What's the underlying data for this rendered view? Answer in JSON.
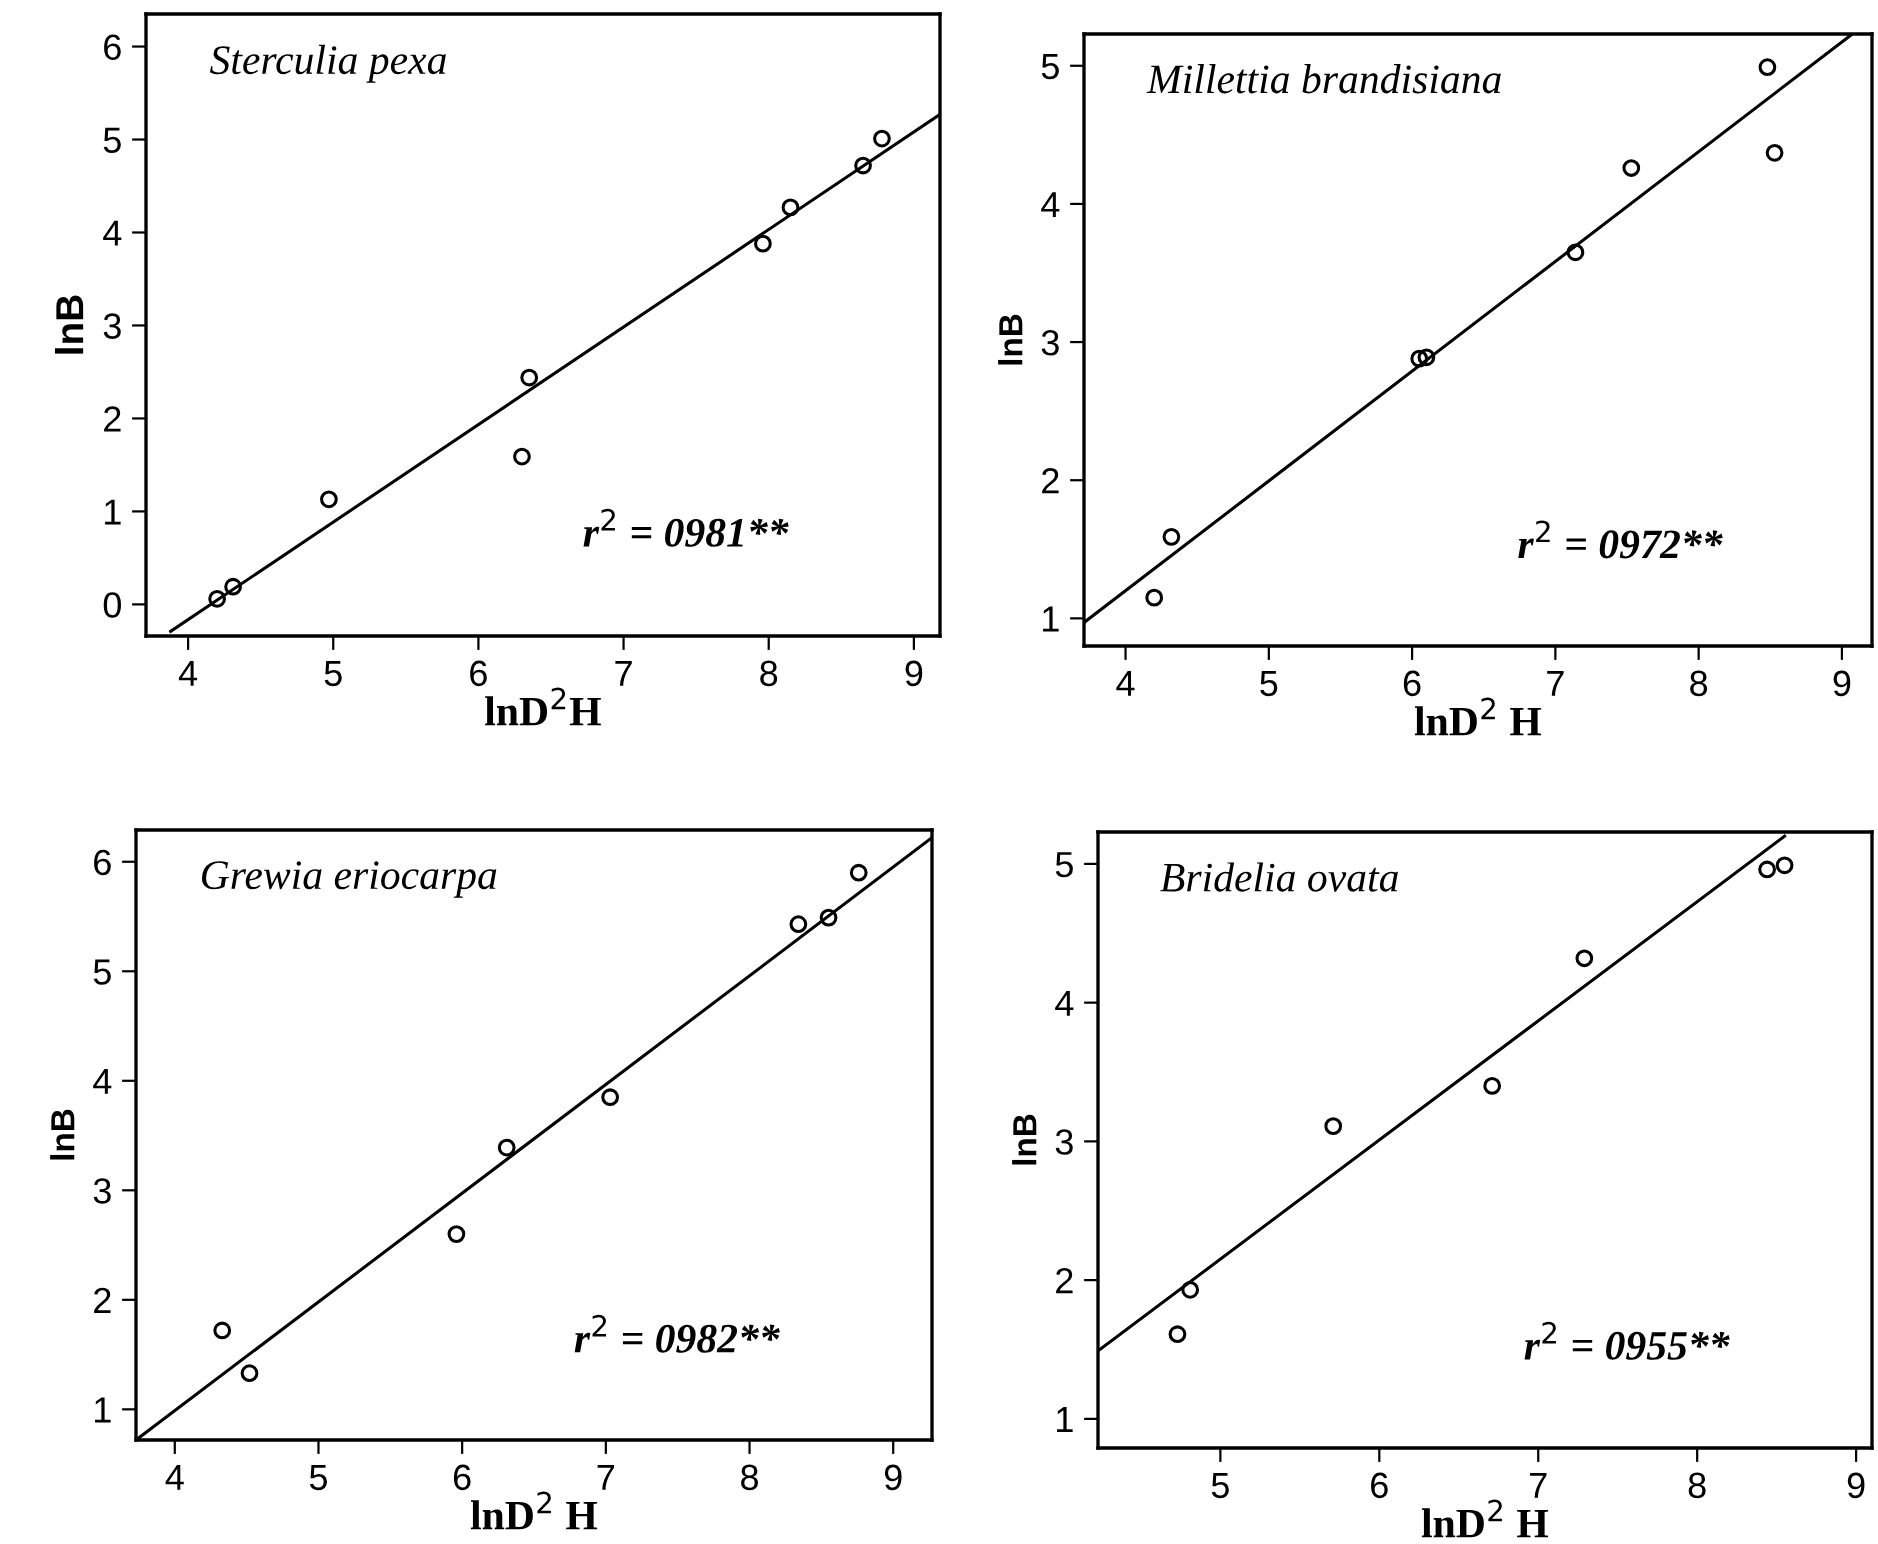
{
  "chart_data": [
    {
      "type": "scatter",
      "title": "Sterculia pexa",
      "xlabel": "lnD$^{2}$H",
      "ylabel": "lnB",
      "xlim": [
        3.71,
        9.18
      ],
      "ylim": [
        -0.34,
        6.35
      ],
      "xticks": [
        4,
        5,
        6,
        7,
        8,
        9
      ],
      "yticks": [
        0,
        1,
        2,
        3,
        4,
        5,
        6
      ],
      "grid": false,
      "annotations": [
        "r$^{2}$ = 0981**"
      ],
      "series": [
        {
          "marker": "circle",
          "color": "#000000",
          "x": [
            4.2,
            4.31,
            4.97,
            6.3,
            6.35,
            7.96,
            8.15,
            8.65,
            8.78
          ],
          "values": [
            0.06,
            0.19,
            1.13,
            1.59,
            2.44,
            3.88,
            4.27,
            4.72,
            5.01
          ]
        },
        {
          "type": "line",
          "color": "#000000",
          "x": [
            3.88,
            9.18
          ],
          "values": [
            -0.29,
            5.27
          ]
        }
      ]
    },
    {
      "type": "scatter",
      "title": "Millettia brandisiana",
      "xlabel": "lnD$^{2}$ H",
      "ylabel": "lnB",
      "xlim": [
        3.71,
        9.21
      ],
      "ylim": [
        0.8,
        5.23
      ],
      "xticks": [
        4,
        5,
        6,
        7,
        8,
        9
      ],
      "yticks": [
        1,
        2,
        3,
        4,
        5
      ],
      "grid": false,
      "annotations": [
        "r$^{2}$ = 0972**"
      ],
      "series": [
        {
          "marker": "circle",
          "color": "#000000",
          "x": [
            4.2,
            4.32,
            6.05,
            6.1,
            7.14,
            7.53,
            8.48,
            8.53
          ],
          "values": [
            1.15,
            1.59,
            2.88,
            2.89,
            3.65,
            4.26,
            4.99,
            4.37
          ]
        },
        {
          "type": "line",
          "color": "#000000",
          "x": [
            3.71,
            9.06
          ],
          "values": [
            0.97,
            5.22
          ]
        }
      ]
    },
    {
      "type": "scatter",
      "title": "Grewia eriocarpa",
      "xlabel": "lnD$^{2}$ H",
      "ylabel": "lnB",
      "xlim": [
        3.73,
        9.27
      ],
      "ylim": [
        0.72,
        6.29
      ],
      "xticks": [
        4,
        5,
        6,
        7,
        8,
        9
      ],
      "yticks": [
        1,
        2,
        3,
        4,
        5,
        6
      ],
      "grid": false,
      "annotations": [
        "r$^{2}$ = 0982**"
      ],
      "series": [
        {
          "marker": "circle",
          "color": "#000000",
          "x": [
            4.33,
            4.52,
            5.96,
            6.31,
            7.03,
            8.34,
            8.55,
            8.76
          ],
          "values": [
            1.72,
            1.33,
            2.6,
            3.39,
            3.85,
            5.43,
            5.49,
            5.9
          ]
        },
        {
          "type": "line",
          "color": "#000000",
          "x": [
            3.73,
            9.27
          ],
          "values": [
            0.72,
            6.22
          ]
        }
      ]
    },
    {
      "type": "scatter",
      "title": "Bridelia ovata",
      "xlabel": "lnD$^{2}$ H",
      "ylabel": "lnB",
      "xlim": [
        4.23,
        9.1
      ],
      "ylim": [
        0.79,
        5.23
      ],
      "xticks": [
        5,
        6,
        7,
        8,
        9
      ],
      "yticks": [
        1,
        2,
        3,
        4,
        5
      ],
      "grid": false,
      "annotations": [
        "r$^{2}$ = 0955**"
      ],
      "series": [
        {
          "marker": "circle",
          "color": "#000000",
          "x": [
            4.73,
            4.81,
            5.71,
            6.71,
            7.29,
            8.44,
            8.55
          ],
          "values": [
            1.61,
            1.93,
            3.11,
            3.4,
            4.32,
            4.96,
            4.99
          ]
        },
        {
          "type": "line",
          "color": "#000000",
          "x": [
            4.23,
            8.55
          ],
          "values": [
            1.49,
            5.2
          ]
        }
      ]
    }
  ]
}
